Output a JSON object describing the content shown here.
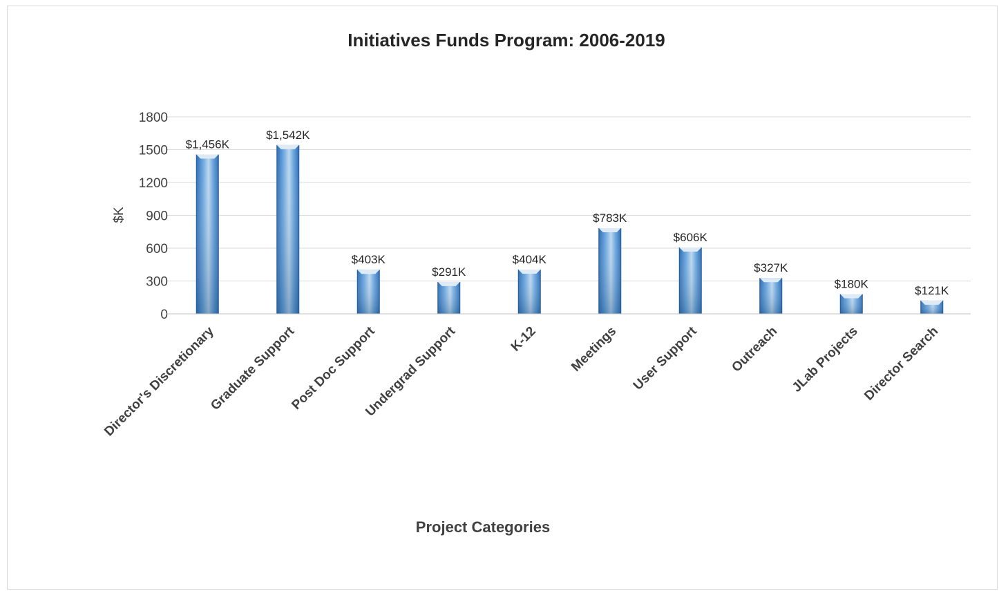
{
  "chart_data": {
    "type": "bar",
    "title": "Initiatives Funds Program: 2006-2019",
    "xlabel": "Project Categories",
    "ylabel": "$K",
    "ylim": [
      0,
      1800
    ],
    "yticks": [
      0,
      300,
      600,
      900,
      1200,
      1500,
      1800
    ],
    "grid": true,
    "legend": "none",
    "categories": [
      "Director's Discretionary",
      "Graduate Support",
      "Post Doc Support",
      "Undergrad Support",
      "K-12",
      "Meetings",
      "User Support",
      "Outreach",
      "JLab Projects",
      "Director Search"
    ],
    "values": [
      1456,
      1542,
      403,
      291,
      404,
      783,
      606,
      327,
      180,
      121
    ],
    "data_labels": [
      "$1,456K",
      "$1,542K",
      "$403K",
      "$291K",
      "$404K",
      "$783K",
      "$606K",
      "$327K",
      "$180K",
      "$121K"
    ],
    "colors": {
      "bar_dark": "#2e6db4",
      "bar_mid": "#5b9bd5",
      "bar_light": "#bdd7ee",
      "bar_top": "#deebf7"
    }
  }
}
